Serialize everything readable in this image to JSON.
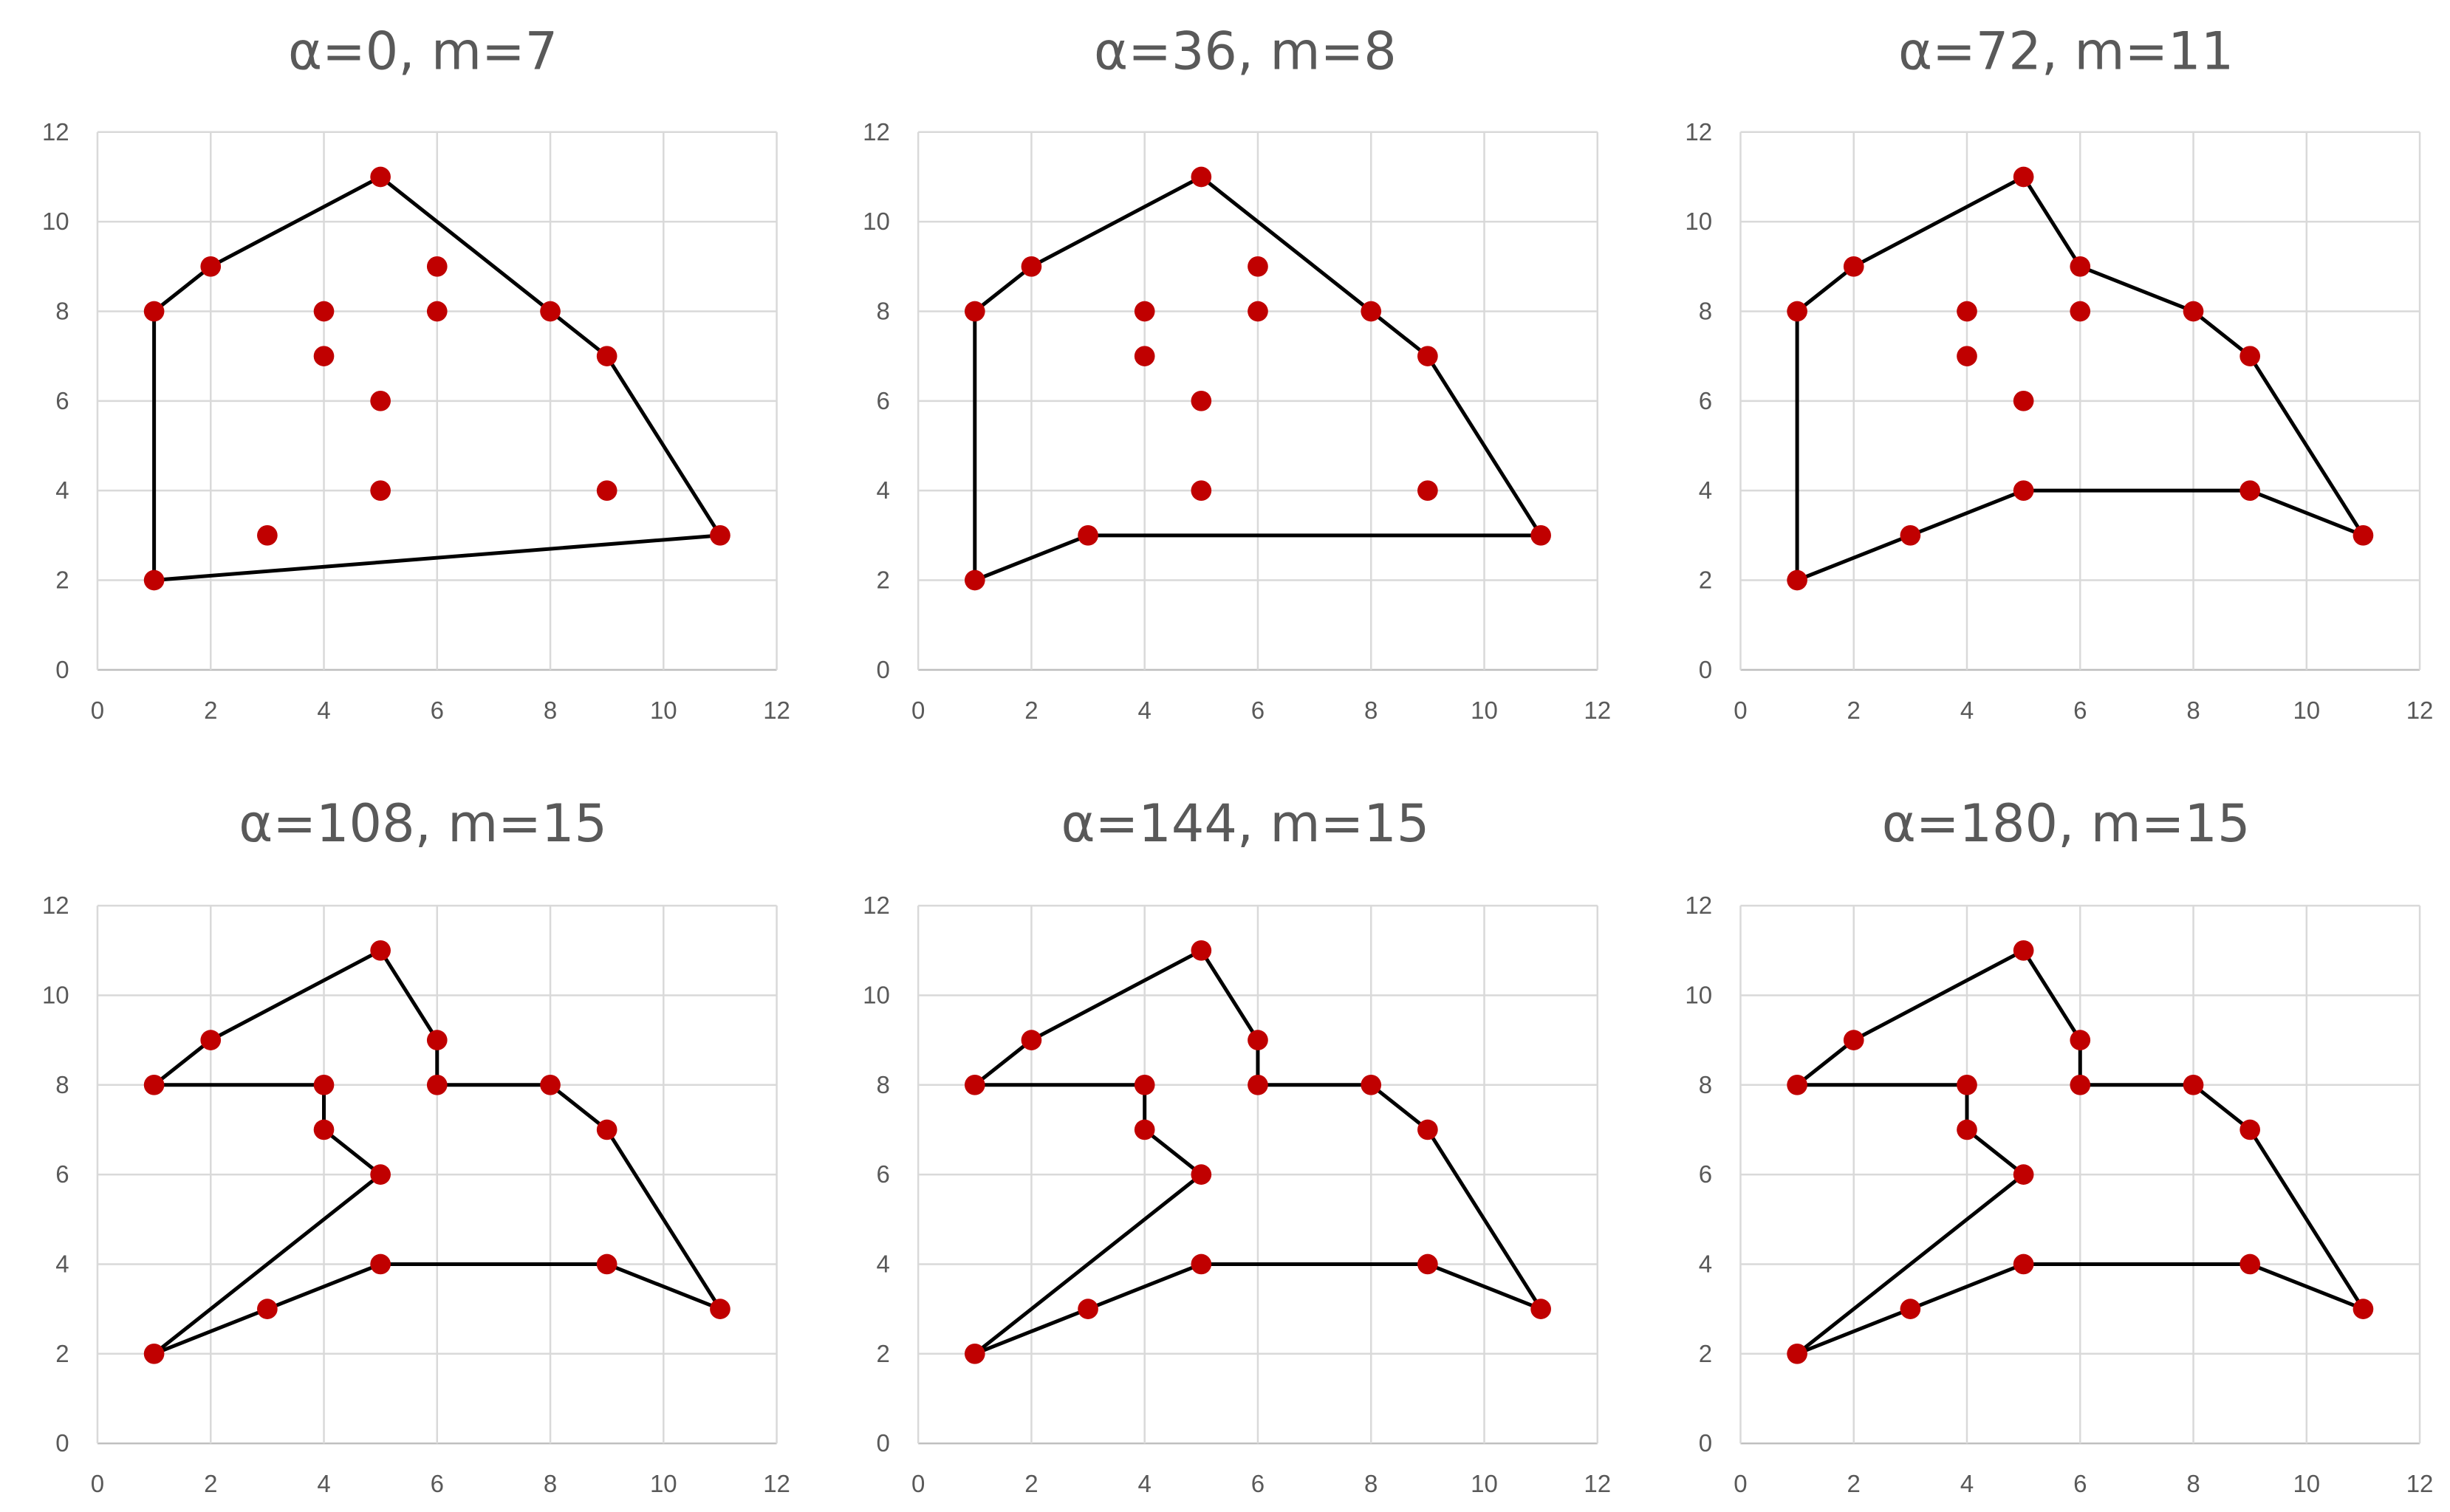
{
  "figure": {
    "background": "#ffffff"
  },
  "colors": {
    "line": "#000000",
    "point": "#c00000",
    "grid": "#d9d9d9",
    "text": "#595959"
  },
  "chart_data": [
    {
      "type": "scatter",
      "title": "α=0, m=7",
      "xlim": [
        0,
        12
      ],
      "ylim": [
        0,
        12
      ],
      "xticks": [
        "0",
        "2",
        "4",
        "6",
        "8",
        "10",
        "12"
      ],
      "yticks": [
        "0",
        "2",
        "4",
        "6",
        "8",
        "10",
        "12"
      ],
      "grid": true,
      "points": [
        [
          1,
          2
        ],
        [
          1,
          8
        ],
        [
          2,
          9
        ],
        [
          5,
          11
        ],
        [
          8,
          8
        ],
        [
          9,
          7
        ],
        [
          11,
          3
        ],
        [
          3,
          3
        ],
        [
          4,
          7
        ],
        [
          4,
          8
        ],
        [
          5,
          6
        ],
        [
          5,
          4
        ],
        [
          6,
          8
        ],
        [
          6,
          9
        ],
        [
          9,
          4
        ]
      ],
      "polygon": [
        [
          1,
          2
        ],
        [
          1,
          8
        ],
        [
          2,
          9
        ],
        [
          5,
          11
        ],
        [
          8,
          8
        ],
        [
          9,
          7
        ],
        [
          11,
          3
        ]
      ]
    },
    {
      "type": "scatter",
      "title": "α=36, m=8",
      "xlim": [
        0,
        12
      ],
      "ylim": [
        0,
        12
      ],
      "xticks": [
        "0",
        "2",
        "4",
        "6",
        "8",
        "10",
        "12"
      ],
      "yticks": [
        "0",
        "2",
        "4",
        "6",
        "8",
        "10",
        "12"
      ],
      "grid": true,
      "points": [
        [
          1,
          2
        ],
        [
          1,
          8
        ],
        [
          2,
          9
        ],
        [
          5,
          11
        ],
        [
          8,
          8
        ],
        [
          9,
          7
        ],
        [
          11,
          3
        ],
        [
          3,
          3
        ],
        [
          4,
          7
        ],
        [
          4,
          8
        ],
        [
          5,
          6
        ],
        [
          5,
          4
        ],
        [
          6,
          8
        ],
        [
          6,
          9
        ],
        [
          9,
          4
        ]
      ],
      "polygon": [
        [
          1,
          2
        ],
        [
          1,
          8
        ],
        [
          2,
          9
        ],
        [
          5,
          11
        ],
        [
          8,
          8
        ],
        [
          9,
          7
        ],
        [
          11,
          3
        ],
        [
          3,
          3
        ]
      ]
    },
    {
      "type": "scatter",
      "title": "α=72, m=11",
      "xlim": [
        0,
        12
      ],
      "ylim": [
        0,
        12
      ],
      "xticks": [
        "0",
        "2",
        "4",
        "6",
        "8",
        "10",
        "12"
      ],
      "yticks": [
        "0",
        "2",
        "4",
        "6",
        "8",
        "10",
        "12"
      ],
      "grid": true,
      "points": [
        [
          1,
          2
        ],
        [
          1,
          8
        ],
        [
          2,
          9
        ],
        [
          5,
          11
        ],
        [
          8,
          8
        ],
        [
          9,
          7
        ],
        [
          11,
          3
        ],
        [
          3,
          3
        ],
        [
          4,
          7
        ],
        [
          4,
          8
        ],
        [
          5,
          6
        ],
        [
          5,
          4
        ],
        [
          6,
          8
        ],
        [
          6,
          9
        ],
        [
          9,
          4
        ]
      ],
      "polygon": [
        [
          1,
          2
        ],
        [
          1,
          8
        ],
        [
          2,
          9
        ],
        [
          5,
          11
        ],
        [
          6,
          9
        ],
        [
          8,
          8
        ],
        [
          9,
          7
        ],
        [
          11,
          3
        ],
        [
          9,
          4
        ],
        [
          5,
          4
        ],
        [
          3,
          3
        ]
      ]
    },
    {
      "type": "scatter",
      "title": "α=108, m=15",
      "xlim": [
        0,
        12
      ],
      "ylim": [
        0,
        12
      ],
      "xticks": [
        "0",
        "2",
        "4",
        "6",
        "8",
        "10",
        "12"
      ],
      "yticks": [
        "0",
        "2",
        "4",
        "6",
        "8",
        "10",
        "12"
      ],
      "grid": true,
      "points": [
        [
          1,
          2
        ],
        [
          1,
          8
        ],
        [
          2,
          9
        ],
        [
          5,
          11
        ],
        [
          8,
          8
        ],
        [
          9,
          7
        ],
        [
          11,
          3
        ],
        [
          3,
          3
        ],
        [
          4,
          7
        ],
        [
          4,
          8
        ],
        [
          5,
          6
        ],
        [
          5,
          4
        ],
        [
          6,
          8
        ],
        [
          6,
          9
        ],
        [
          9,
          4
        ]
      ],
      "polygon": [
        [
          1,
          2
        ],
        [
          5,
          6
        ],
        [
          4,
          7
        ],
        [
          4,
          8
        ],
        [
          1,
          8
        ],
        [
          2,
          9
        ],
        [
          5,
          11
        ],
        [
          6,
          9
        ],
        [
          6,
          8
        ],
        [
          8,
          8
        ],
        [
          9,
          7
        ],
        [
          11,
          3
        ],
        [
          9,
          4
        ],
        [
          5,
          4
        ],
        [
          3,
          3
        ]
      ]
    },
    {
      "type": "scatter",
      "title": "α=144, m=15",
      "xlim": [
        0,
        12
      ],
      "ylim": [
        0,
        12
      ],
      "xticks": [
        "0",
        "2",
        "4",
        "6",
        "8",
        "10",
        "12"
      ],
      "yticks": [
        "0",
        "2",
        "4",
        "6",
        "8",
        "10",
        "12"
      ],
      "grid": true,
      "points": [
        [
          1,
          2
        ],
        [
          1,
          8
        ],
        [
          2,
          9
        ],
        [
          5,
          11
        ],
        [
          8,
          8
        ],
        [
          9,
          7
        ],
        [
          11,
          3
        ],
        [
          3,
          3
        ],
        [
          4,
          7
        ],
        [
          4,
          8
        ],
        [
          5,
          6
        ],
        [
          5,
          4
        ],
        [
          6,
          8
        ],
        [
          6,
          9
        ],
        [
          9,
          4
        ]
      ],
      "polygon": [
        [
          1,
          2
        ],
        [
          5,
          6
        ],
        [
          4,
          7
        ],
        [
          4,
          8
        ],
        [
          1,
          8
        ],
        [
          2,
          9
        ],
        [
          5,
          11
        ],
        [
          6,
          9
        ],
        [
          6,
          8
        ],
        [
          8,
          8
        ],
        [
          9,
          7
        ],
        [
          11,
          3
        ],
        [
          9,
          4
        ],
        [
          5,
          4
        ],
        [
          3,
          3
        ]
      ]
    },
    {
      "type": "scatter",
      "title": "α=180, m=15",
      "xlim": [
        0,
        12
      ],
      "ylim": [
        0,
        12
      ],
      "xticks": [
        "0",
        "2",
        "4",
        "6",
        "8",
        "10",
        "12"
      ],
      "yticks": [
        "0",
        "2",
        "4",
        "6",
        "8",
        "10",
        "12"
      ],
      "grid": true,
      "points": [
        [
          1,
          2
        ],
        [
          1,
          8
        ],
        [
          2,
          9
        ],
        [
          5,
          11
        ],
        [
          8,
          8
        ],
        [
          9,
          7
        ],
        [
          11,
          3
        ],
        [
          3,
          3
        ],
        [
          4,
          7
        ],
        [
          4,
          8
        ],
        [
          5,
          6
        ],
        [
          5,
          4
        ],
        [
          6,
          8
        ],
        [
          6,
          9
        ],
        [
          9,
          4
        ]
      ],
      "polygon": [
        [
          1,
          2
        ],
        [
          5,
          6
        ],
        [
          4,
          7
        ],
        [
          4,
          8
        ],
        [
          1,
          8
        ],
        [
          2,
          9
        ],
        [
          5,
          11
        ],
        [
          6,
          9
        ],
        [
          6,
          8
        ],
        [
          8,
          8
        ],
        [
          9,
          7
        ],
        [
          11,
          3
        ],
        [
          9,
          4
        ],
        [
          5,
          4
        ],
        [
          3,
          3
        ]
      ]
    }
  ]
}
